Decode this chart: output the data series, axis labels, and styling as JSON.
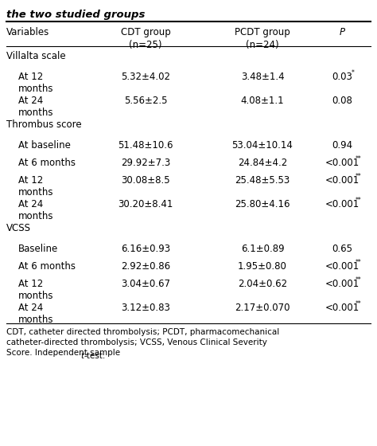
{
  "title": "the two studied groups",
  "col_headers": [
    "Variables",
    "CDT group\n(n=25)",
    "PCDT group\n(n=24)",
    "P"
  ],
  "rows": [
    {
      "label": "Villalta scale",
      "indent": false,
      "cdt": "",
      "pcdt": "",
      "p": "",
      "p_sup": "",
      "wrap": false
    },
    {
      "label": "At 12\nmonths",
      "indent": true,
      "cdt": "5.32±4.02",
      "pcdt": "3.48±1.4",
      "p": "0.03",
      "p_sup": "*",
      "wrap": true
    },
    {
      "label": "At 24\nmonths",
      "indent": true,
      "cdt": "5.56±2.5",
      "pcdt": "4.08±1.1",
      "p": "0.08",
      "p_sup": "",
      "wrap": true
    },
    {
      "label": "Thrombus score",
      "indent": false,
      "cdt": "",
      "pcdt": "",
      "p": "",
      "p_sup": "",
      "wrap": false
    },
    {
      "label": "At baseline",
      "indent": true,
      "cdt": "51.48±10.6",
      "pcdt": "53.04±10.14",
      "p": "0.94",
      "p_sup": "",
      "wrap": false
    },
    {
      "label": "At 6 months",
      "indent": true,
      "cdt": "29.92±7.3",
      "pcdt": "24.84±4.2",
      "p": "<0.001",
      "p_sup": "**",
      "wrap": false
    },
    {
      "label": "At 12\nmonths",
      "indent": true,
      "cdt": "30.08±8.5",
      "pcdt": "25.48±5.53",
      "p": "<0.001",
      "p_sup": "**",
      "wrap": true
    },
    {
      "label": "At 24\nmonths",
      "indent": true,
      "cdt": "30.20±8.41",
      "pcdt": "25.80±4.16",
      "p": "<0.001",
      "p_sup": "**",
      "wrap": true
    },
    {
      "label": "VCSS",
      "indent": false,
      "cdt": "",
      "pcdt": "",
      "p": "",
      "p_sup": "",
      "wrap": false
    },
    {
      "label": "Baseline",
      "indent": true,
      "cdt": "6.16±0.93",
      "pcdt": "6.1±0.89",
      "p": "0.65",
      "p_sup": "",
      "wrap": false
    },
    {
      "label": "At 6 months",
      "indent": true,
      "cdt": "2.92±0.86",
      "pcdt": "1.95±0.80",
      "p": "<0.001",
      "p_sup": "**",
      "wrap": false
    },
    {
      "label": "At 12\nmonths",
      "indent": true,
      "cdt": "3.04±0.67",
      "pcdt": "2.04±0.62",
      "p": "<0.001",
      "p_sup": "**",
      "wrap": true
    },
    {
      "label": "At 24\nmonths",
      "indent": true,
      "cdt": "3.12±0.83",
      "pcdt": "2.17±0.070",
      "p": "<0.001",
      "p_sup": "**",
      "wrap": true
    }
  ],
  "footnote_parts": [
    {
      "text": "CDT, catheter directed thrombolysis; PCDT, pharmacomechanical\ncatheter-directed thrombolysis; VCSS, Venous Clinical Severity\nScore. Independent sample ",
      "italic": false
    },
    {
      "text": "t",
      "italic": true
    },
    {
      "text": "-test.",
      "italic": false
    }
  ],
  "bg_color": "#ffffff",
  "text_color": "#000000",
  "line_color": "#000000",
  "fontsize": 8.5,
  "header_fontsize": 8.5,
  "title_fontsize": 9.5,
  "footnote_fontsize": 7.5
}
